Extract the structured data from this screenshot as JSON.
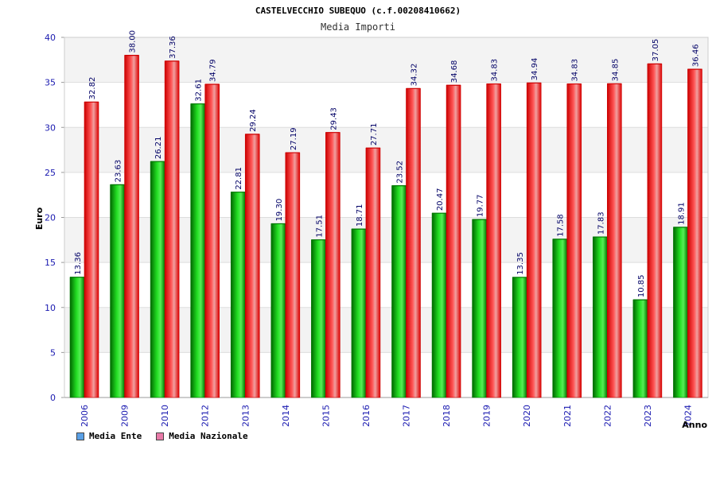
{
  "chart_data": {
    "type": "bar",
    "title": "CASTELVECCHIO SUBEQUO (c.f.00208410662)",
    "subtitle": "Media Importi",
    "xlabel": "Anno",
    "ylabel": "Euro",
    "ylim": [
      0,
      40
    ],
    "yticks": [
      "0",
      "5",
      "10",
      "15",
      "20",
      "25",
      "30",
      "35",
      "40"
    ],
    "grid": true,
    "legend_position": "bottom-left",
    "categories": [
      "2006",
      "2009",
      "2010",
      "2012",
      "2013",
      "2014",
      "2015",
      "2016",
      "2017",
      "2018",
      "2019",
      "2020",
      "2021",
      "2022",
      "2023",
      "2024"
    ],
    "series": [
      {
        "name": "Media Ente",
        "legend_color": "#5aa0e6",
        "bar_color": "#00cc00",
        "values": [
          13.36,
          23.63,
          26.21,
          32.61,
          22.81,
          19.3,
          17.51,
          18.71,
          23.52,
          20.47,
          19.77,
          13.35,
          17.58,
          17.83,
          10.85,
          18.91
        ],
        "labels": [
          "13.36",
          "23.63",
          "26.21",
          "32.61",
          "22.81",
          "19.30",
          "17.51",
          "18.71",
          "23.52",
          "20.47",
          "19.77",
          "13.35",
          "17.58",
          "17.83",
          "10.85",
          "18.91"
        ]
      },
      {
        "name": "Media Nazionale",
        "legend_color": "#e87aa8",
        "bar_color": "#ff2020",
        "values": [
          32.82,
          38.0,
          37.36,
          34.79,
          29.24,
          27.19,
          29.43,
          27.71,
          34.32,
          34.68,
          34.83,
          34.94,
          34.83,
          34.85,
          37.05,
          36.46
        ],
        "labels": [
          "32.82",
          "38.00",
          "37.36",
          "34.79",
          "29.24",
          "27.19",
          "29.43",
          "27.71",
          "34.32",
          "34.68",
          "34.83",
          "34.94",
          "34.83",
          "34.85",
          "37.05",
          "36.46"
        ]
      }
    ]
  }
}
